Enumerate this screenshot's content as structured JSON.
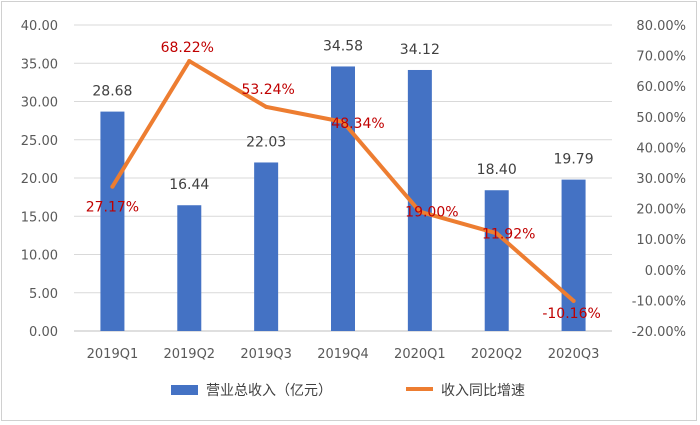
{
  "chart_data": {
    "type": "bar",
    "categories": [
      "2019Q1",
      "2019Q2",
      "2019Q3",
      "2019Q4",
      "2020Q1",
      "2020Q2",
      "2020Q3"
    ],
    "series": [
      {
        "name": "营业总收入（亿元）",
        "type": "bar",
        "axis": "left",
        "color": "#4472c4",
        "values": [
          28.68,
          16.44,
          22.03,
          34.58,
          34.12,
          18.4,
          19.79
        ],
        "labels": [
          "28.68",
          "16.44",
          "22.03",
          "34.58",
          "34.12",
          "18.40",
          "19.79"
        ]
      },
      {
        "name": "收入同比增速",
        "type": "line",
        "axis": "right",
        "color": "#ed7d31",
        "label_color": "#c00000",
        "values": [
          27.17,
          68.22,
          53.24,
          48.34,
          19.0,
          11.92,
          -10.16
        ],
        "labels": [
          "27.17%",
          "68.22%",
          "53.24%",
          "48.34%",
          "19.00%",
          "11.92%",
          "-10.16%"
        ]
      }
    ],
    "y_left": {
      "min": 0,
      "max": 40,
      "step": 5,
      "tick_labels": [
        "0.00",
        "5.00",
        "10.00",
        "15.00",
        "20.00",
        "25.00",
        "30.00",
        "35.00",
        "40.00"
      ]
    },
    "y_right": {
      "min": -20,
      "max": 80,
      "step": 10,
      "tick_labels": [
        "-20.00%",
        "-10.00%",
        "0.00%",
        "10.00%",
        "20.00%",
        "30.00%",
        "40.00%",
        "50.00%",
        "60.00%",
        "70.00%",
        "80.00%"
      ]
    },
    "grid": true,
    "legend_position": "bottom",
    "title": ""
  }
}
